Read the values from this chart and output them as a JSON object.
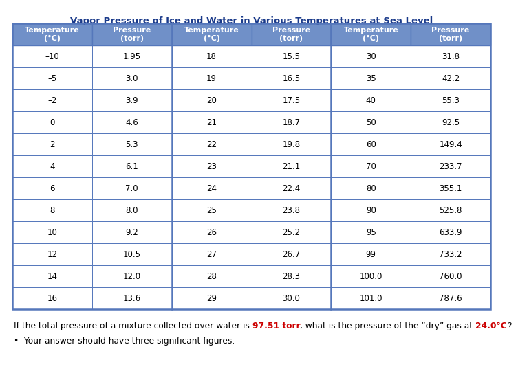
{
  "title": "Vapor Pressure of Ice and Water in Various Temperatures at Sea Level",
  "header_bg": "#7090c8",
  "header_text_color": "#ffffff",
  "row_bg": "#ffffff",
  "row_text_color": "#000000",
  "border_color": "#5577bb",
  "col1_temps": [
    "–10",
    "–5",
    "–2",
    "0",
    "2",
    "4",
    "6",
    "8",
    "10",
    "12",
    "14",
    "16"
  ],
  "col1_press": [
    "1.95",
    "3.0",
    "3.9",
    "4.6",
    "5.3",
    "6.1",
    "7.0",
    "8.0",
    "9.2",
    "10.5",
    "12.0",
    "13.6"
  ],
  "col2_temps": [
    "18",
    "19",
    "20",
    "21",
    "22",
    "23",
    "24",
    "25",
    "26",
    "27",
    "28",
    "29"
  ],
  "col2_press": [
    "15.5",
    "16.5",
    "17.5",
    "18.7",
    "19.8",
    "21.1",
    "22.4",
    "23.8",
    "25.2",
    "26.7",
    "28.3",
    "30.0"
  ],
  "col3_temps": [
    "30",
    "35",
    "40",
    "50",
    "60",
    "70",
    "80",
    "90",
    "95",
    "99",
    "100.0",
    "101.0"
  ],
  "col3_press": [
    "31.8",
    "42.2",
    "55.3",
    "92.5",
    "149.4",
    "233.7",
    "355.1",
    "525.8",
    "633.9",
    "733.2",
    "760.0",
    "787.6"
  ],
  "title_color": "#1a3a8a",
  "highlight_color": "#cc0000",
  "header_col_labels": [
    "Temperature\n(°C)",
    "Pressure\n(torr)",
    "Temperature\n(°C)",
    "Pressure\n(torr)",
    "Temperature\n(°C)",
    "Pressure\n(torr)"
  ],
  "bullet_text": "Your answer should have three significant figures.",
  "question_parts": [
    [
      "If the total pressure of a mixture collected over water is ",
      "#000000",
      false
    ],
    [
      "97.51 torr",
      "#cc0000",
      true
    ],
    [
      ", what is the pressure of the “dry” gas at ",
      "#000000",
      false
    ],
    [
      "24.0°C",
      "#cc0000",
      true
    ],
    [
      "?",
      "#000000",
      false
    ]
  ]
}
